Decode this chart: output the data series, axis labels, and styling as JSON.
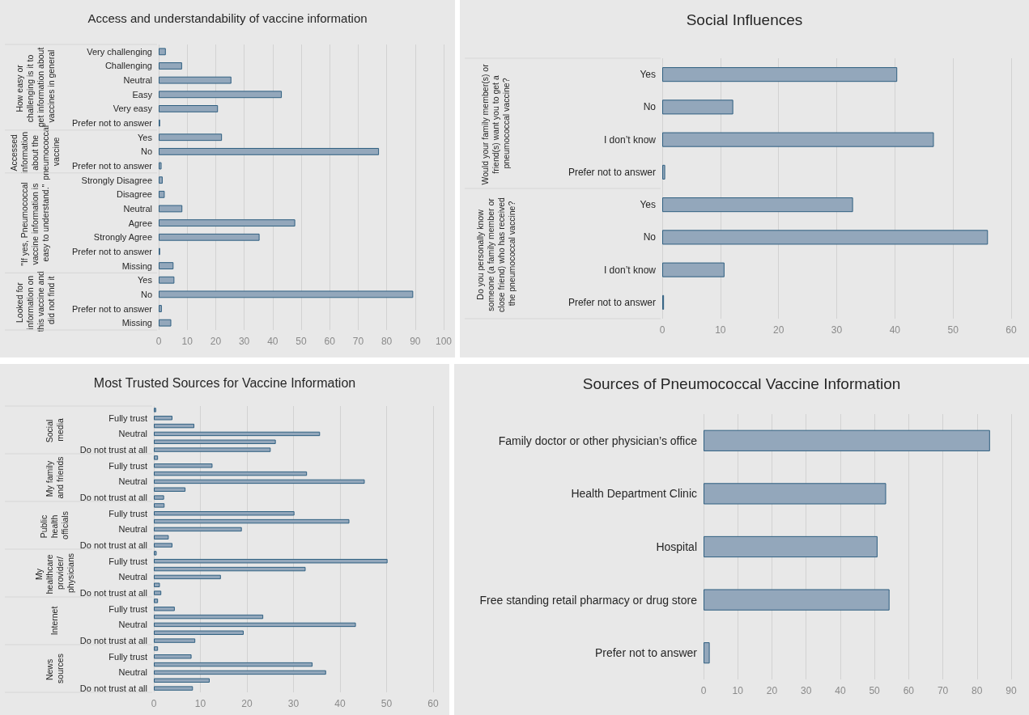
{
  "chart_data": [
    {
      "type": "bar",
      "orientation": "horizontal",
      "title": "Access and understandability of vaccine information",
      "categories": [
        "Very challenging",
        "Challenging",
        "Neutral",
        "Easy",
        "Very easy",
        "Prefer not to answer",
        "Yes",
        "No",
        "Prefer not to answer",
        "Strongly Disagree",
        "Disagree",
        "Neutral",
        "Agree",
        "Strongly Agree",
        "Prefer not to answer",
        "Missing",
        "Yes",
        "No",
        "Prefer not to answer",
        "Missing"
      ],
      "values": [
        2.5,
        8.2,
        25.5,
        43.2,
        20.8,
        0.5,
        22.2,
        77.3,
        1,
        1.4,
        2.1,
        8.3,
        47.9,
        35.4,
        0.5,
        5.2,
        5.5,
        89.3,
        1.1,
        4.4
      ],
      "color": "#93a7bb",
      "xlim": [
        0,
        100
      ],
      "xticks": [
        0,
        10,
        20,
        30,
        40,
        50,
        60,
        70,
        80,
        90,
        100
      ],
      "grid": "x",
      "annotations": [
        "How easy or challenging is it to get information about vaccines in general",
        "Accessed information about the pneumococcal vaccine",
        "\"If yes, Pneumococcal vaccine information is easy to understand.\"",
        "Looked for information on this vaccine and did not find it"
      ]
    },
    {
      "type": "bar",
      "orientation": "horizontal",
      "title": "Social Influences",
      "categories": [
        "Yes",
        "No",
        "I don’t know",
        "Prefer not to answer",
        "Yes",
        "No",
        "I don’t know",
        "Prefer not to answer"
      ],
      "values": [
        40.4,
        12.2,
        46.7,
        0.5,
        32.8,
        56,
        10.7,
        0.3
      ],
      "color": "#93a7bb",
      "xlim": [
        0,
        60
      ],
      "xticks": [
        0,
        10,
        20,
        30,
        40,
        50,
        60
      ],
      "grid": "x",
      "annotations": [
        "Would your family member(s) or friend(s) want you to get a pneumococcal vaccine?",
        "Do you personally know someone (a family member or close friend) who has received the pneumococcal vaccine?"
      ]
    },
    {
      "type": "bar",
      "orientation": "horizontal",
      "title": "Most Trusted Sources for Vaccine Information",
      "categories": [
        null,
        "Fully trust",
        null,
        "Neutral",
        null,
        "Do not trust at all",
        null,
        "Fully trust",
        null,
        "Neutral",
        null,
        "Do not trust at all",
        null,
        "Fully trust",
        null,
        "Neutral",
        null,
        "Do not trust at all",
        null,
        "Fully trust",
        null,
        "Neutral",
        null,
        "Do not trust at all",
        null,
        "Fully trust",
        null,
        "Neutral",
        null,
        "Do not trust at all",
        null,
        "Fully trust",
        null,
        "Neutral",
        null,
        "Do not trust at all"
      ],
      "values": [
        0.5,
        4,
        8.7,
        35.7,
        26.2,
        25.1,
        0.9,
        12.6,
        32.9,
        45.3,
        6.8,
        2.2,
        2.3,
        30.2,
        42,
        18.9,
        3.2,
        4,
        0.6,
        50.2,
        32.6,
        14.4,
        1.3,
        1.6,
        0.9,
        4.5,
        23.5,
        43.4,
        19.3,
        8.9,
        0.9,
        8.1,
        34.1,
        37,
        12,
        8.4
      ],
      "color": "#93a7bb",
      "xlim": [
        0,
        60
      ],
      "xticks": [
        0,
        10,
        20,
        30,
        40,
        50,
        60
      ],
      "grid": "x",
      "annotations": [
        "Social media",
        "My family and friends",
        "Public health officials",
        "My healthcare provider/physicians",
        "Internet",
        "News sources"
      ]
    },
    {
      "type": "bar",
      "orientation": "horizontal",
      "title": "Sources of Pneumococcal Vaccine Information",
      "categories": [
        "Family doctor or other physician’s office",
        "Health Department Clinic",
        "Hospital",
        "Free standing retail pharmacy or drug store",
        "Prefer not to answer"
      ],
      "values": [
        83.8,
        53.4,
        50.9,
        54.4,
        1.8
      ],
      "color": "#93a7bb",
      "xlim": [
        0,
        90
      ],
      "xticks": [
        0,
        10,
        20,
        30,
        40,
        50,
        60,
        70,
        80,
        90
      ],
      "grid": "x"
    }
  ]
}
